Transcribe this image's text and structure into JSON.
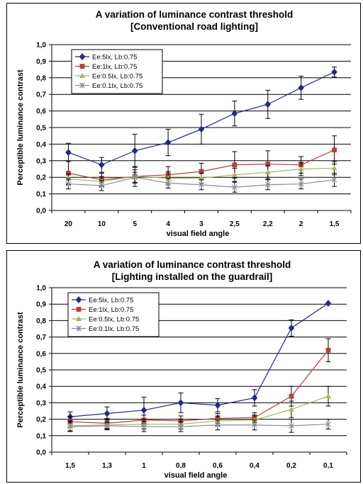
{
  "chart_data": [
    {
      "type": "line",
      "title": "A variation of luminance contrast threshold",
      "subtitle": "[Conventional road lighting]",
      "xlabel": "visual field angle",
      "ylabel": "Perceptible luminance contrast",
      "ylim": [
        0,
        1.0
      ],
      "yticks": [
        "0,0",
        "0,1",
        "0,2",
        "0,3",
        "0,4",
        "0,5",
        "0,6",
        "0,7",
        "0,8",
        "0,9",
        "1,0"
      ],
      "categories": [
        "20",
        "10",
        "5",
        "4",
        "3",
        "2,5",
        "2,2",
        "2",
        "1,5"
      ],
      "grid": true,
      "legend_position": "top-left",
      "series": [
        {
          "name": "Ee:5lx, Lb:0.75",
          "color": "#1f2a8c",
          "marker": "diamond",
          "values": [
            0.35,
            0.275,
            0.36,
            0.41,
            0.49,
            0.585,
            0.64,
            0.74,
            0.835
          ],
          "errors": [
            0.055,
            0.045,
            0.1,
            0.08,
            0.09,
            0.075,
            0.085,
            0.07,
            0.03
          ]
        },
        {
          "name": "Ee:1lx, Lb:0.75",
          "color": "#b5403a",
          "marker": "square",
          "values": [
            0.225,
            0.185,
            0.205,
            0.215,
            0.235,
            0.275,
            0.28,
            0.275,
            0.365
          ],
          "errors": [
            0.07,
            0.04,
            0.06,
            0.05,
            0.05,
            0.08,
            0.08,
            0.05,
            0.085
          ]
        },
        {
          "name": "Ee:0.5lx, Lb:0.75",
          "color": "#9bbb59",
          "marker": "triangle",
          "values": [
            0.19,
            0.175,
            0.205,
            0.195,
            0.195,
            0.215,
            0.23,
            0.25,
            0.255
          ],
          "errors": [
            0.03,
            0.03,
            0.04,
            0.04,
            0.03,
            0.04,
            0.04,
            0.04,
            0.04
          ]
        },
        {
          "name": "Ee:0.1lx, Lb:0.75",
          "color": "#8a8a9e",
          "marker": "x",
          "values": [
            0.16,
            0.15,
            0.2,
            0.165,
            0.155,
            0.14,
            0.155,
            0.16,
            0.185
          ],
          "errors": [
            0.03,
            0.03,
            0.03,
            0.03,
            0.03,
            0.03,
            0.03,
            0.03,
            0.04
          ]
        }
      ]
    },
    {
      "type": "line",
      "title": "A variation of luminance contrast threshold",
      "subtitle": "[Lighting installed on the guardrail]",
      "xlabel": "visual field angle",
      "ylabel": "Perceptible luminance contrast",
      "ylim": [
        0,
        1.0
      ],
      "yticks": [
        "0,0",
        "0,1",
        "0,2",
        "0,3",
        "0,4",
        "0,5",
        "0,6",
        "0,7",
        "0,8",
        "0,9",
        "1,0"
      ],
      "categories": [
        "1,5",
        "1,3",
        "1",
        "0,8",
        "0,6",
        "0,4",
        "0,2",
        "0,1"
      ],
      "grid": true,
      "legend_position": "top-left",
      "series": [
        {
          "name": "Ee:5lx, Lb:0.75",
          "color": "#1f2a8c",
          "marker": "diamond",
          "values": [
            0.215,
            0.235,
            0.255,
            0.3,
            0.285,
            0.33,
            0.755,
            0.905
          ],
          "errors": [
            0.03,
            0.04,
            0.08,
            0.06,
            0.04,
            0.05,
            0.05,
            0
          ]
        },
        {
          "name": "Ee:1lx, Lb:0.75",
          "color": "#b5403a",
          "marker": "square",
          "values": [
            0.185,
            0.175,
            0.195,
            0.19,
            0.205,
            0.21,
            0.34,
            0.62
          ],
          "errors": [
            0.03,
            0.03,
            0.03,
            0.03,
            0.03,
            0.03,
            0.06,
            0.07
          ]
        },
        {
          "name": "Ee:0.5lx, Lb:0.75",
          "color": "#9bbb59",
          "marker": "triangle",
          "values": [
            0.16,
            0.165,
            0.17,
            0.17,
            0.19,
            0.195,
            0.26,
            0.34
          ],
          "errors": [
            0.03,
            0.03,
            0.03,
            0.03,
            0.03,
            0.03,
            0.05,
            0.06
          ]
        },
        {
          "name": "Ee:0.1lx, Lb:0.75",
          "color": "#8a8a9e",
          "marker": "x",
          "values": [
            0.155,
            0.16,
            0.155,
            0.155,
            0.165,
            0.165,
            0.16,
            0.17
          ],
          "errors": [
            0.03,
            0.02,
            0.03,
            0.03,
            0.03,
            0.03,
            0.04,
            0.03
          ]
        }
      ]
    }
  ]
}
